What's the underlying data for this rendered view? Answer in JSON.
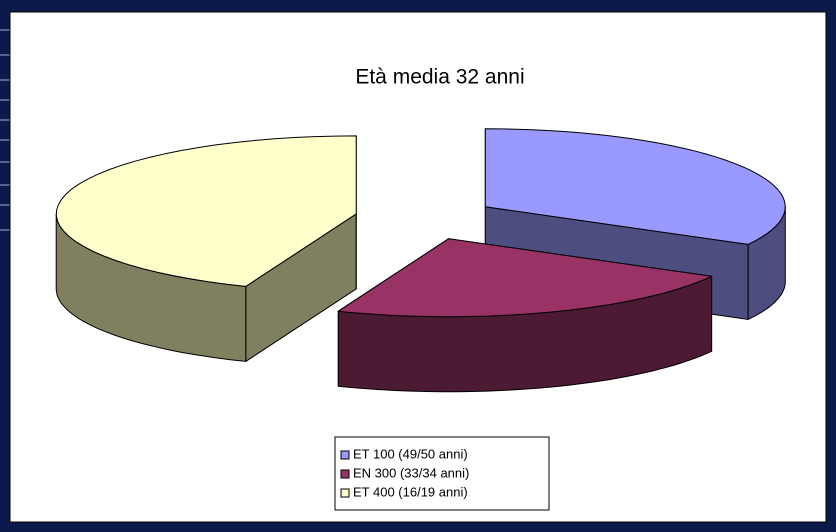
{
  "chart_data": {
    "type": "pie3d",
    "title": "Età media 32 anni",
    "categories": [
      "ET 100 (49/50 anni)",
      "EN 300 (33/34 anni)",
      "ET 400 (16/19 anni)"
    ],
    "values": [
      33,
      23,
      44
    ],
    "colors": [
      "#9999ff",
      "#993366",
      "#ffffcc"
    ],
    "side_colors": [
      "#4d4d80",
      "#4d1a33",
      "#808060"
    ],
    "legend": "bottom"
  }
}
